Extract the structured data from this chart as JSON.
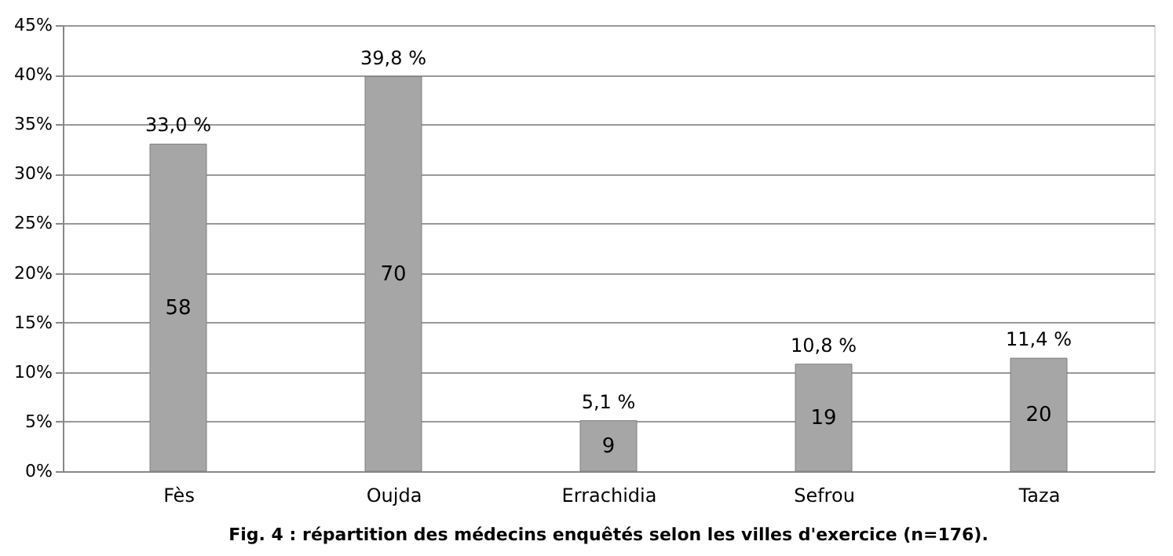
{
  "chart_data": {
    "type": "bar",
    "title": "Fig. 4 : répartition des médecins enquêtés selon les villes d'exercice (n=176).",
    "categories": [
      "Fès",
      "Oujda",
      "Errachidia",
      "Sefrou",
      "Taza"
    ],
    "values": [
      33.0,
      39.8,
      5.1,
      10.8,
      11.4
    ],
    "value_labels": [
      "33,0 %",
      "39,8 %",
      "5,1 %",
      "10,8 %",
      "11,4 %"
    ],
    "color": "#a6a6a6",
    "ylim": [
      0,
      45
    ],
    "yticks": [
      {
        "value": 0,
        "label": "0%"
      },
      {
        "value": 5,
        "label": "5%"
      },
      {
        "value": 10,
        "label": "10%"
      },
      {
        "value": 15,
        "label": "15%"
      },
      {
        "value": 20,
        "label": "20%"
      },
      {
        "value": 25,
        "label": "25%"
      },
      {
        "value": 30,
        "label": "30%"
      },
      {
        "value": 35,
        "label": "35%"
      },
      {
        "value": 40,
        "label": "40%"
      },
      {
        "value": 45,
        "label": "45%"
      }
    ],
    "annotations": [
      "58",
      "70",
      "9",
      "19",
      "20"
    ],
    "grid": "y"
  }
}
